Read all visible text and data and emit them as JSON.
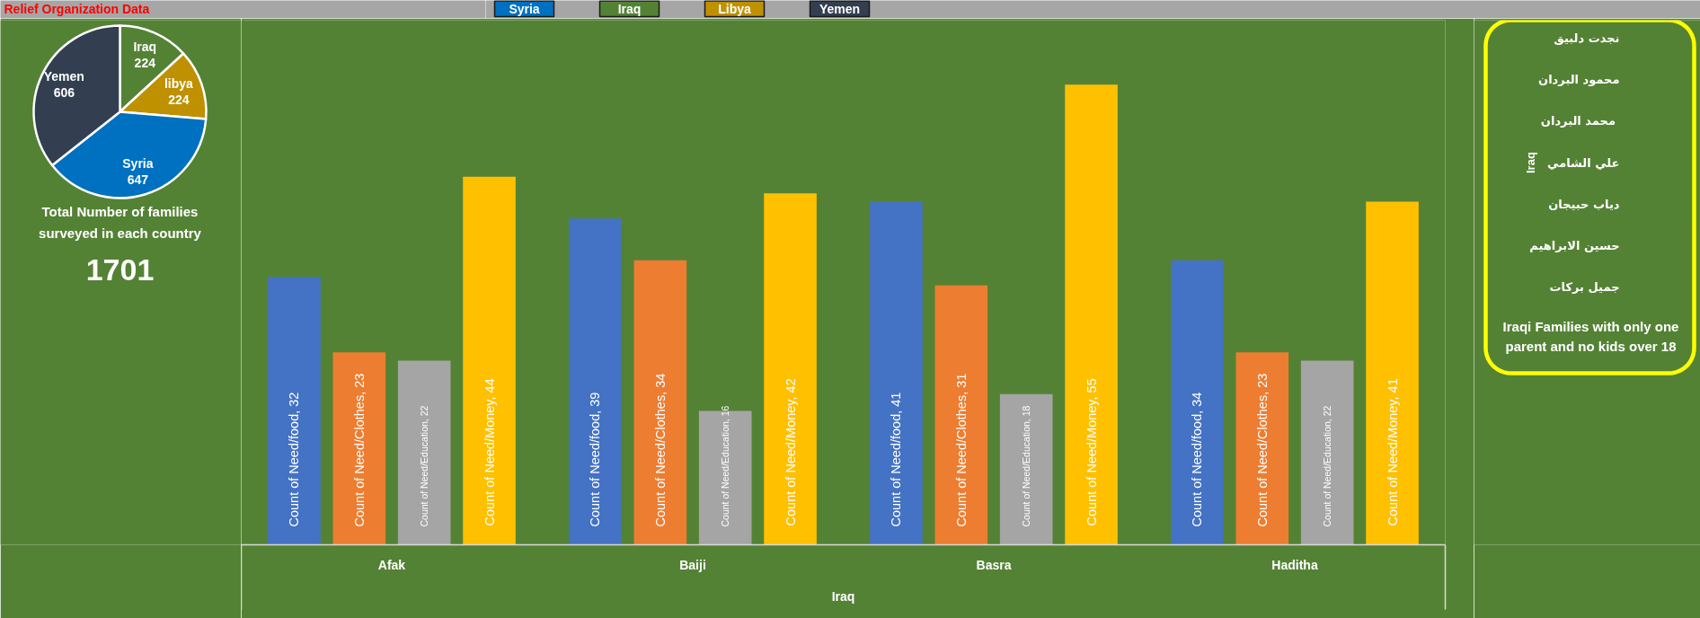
{
  "chart_data": [
    {
      "type": "other",
      "title": "Relief Organization Data"
    },
    {
      "type": "other",
      "categories": [
        "Syria",
        "Iraq",
        "Libya",
        "Yemen"
      ],
      "colors": [
        "#0070c0",
        "#548235",
        "#bf9000",
        "#333f50"
      ]
    },
    {
      "type": "pie",
      "title": "Total Number of families surveyed in each country",
      "categories": [
        "Iraq",
        "libya",
        "Syria",
        "Yemen"
      ],
      "values": [
        224,
        224,
        647,
        606
      ],
      "colors": [
        "#548235",
        "#bf9000",
        "#0070c0",
        "#333f50"
      ],
      "data_labels": true,
      "annotations": [
        "1701"
      ]
    },
    {
      "type": "bar",
      "categories": [
        "Afak",
        "Baiji",
        "Basra",
        "Haditha"
      ],
      "xlabel": "Iraq",
      "data_labels": true,
      "series": [
        {
          "name": "Count of Need/food,",
          "color": "#4472c4",
          "values": [
            32,
            39,
            41,
            34
          ]
        },
        {
          "name": "Count of Need/Clothes,",
          "color": "#ed7d31",
          "values": [
            23,
            34,
            31,
            23
          ]
        },
        {
          "name": "Count of Need/Education,",
          "color": "#a5a5a5",
          "values": [
            22,
            16,
            18,
            22
          ]
        },
        {
          "name": "Count of Need/Money,",
          "color": "#ffc000",
          "values": [
            44,
            42,
            55,
            41
          ]
        }
      ]
    },
    {
      "type": "other",
      "title": "Iraqi Families with only one parent and no kids over 18",
      "ylabel": "Iraq",
      "categories": [
        "نجدت دلبيق",
        "محمود البردان",
        "محمد  البردان",
        "علي الشامي",
        "دياب حبيجان",
        "حسين الابراهيم",
        "جميل بركات"
      ]
    }
  ]
}
